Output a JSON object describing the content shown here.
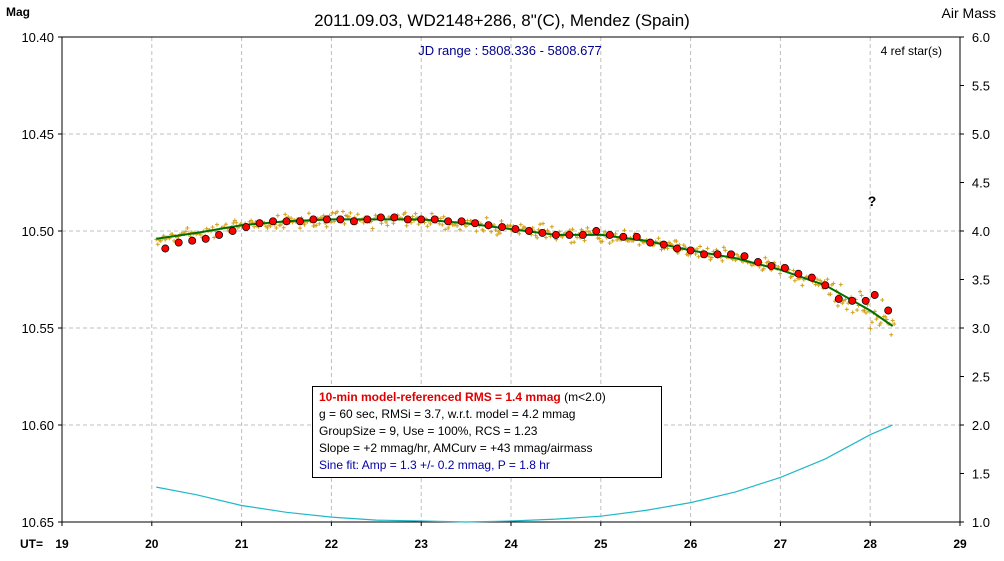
{
  "chart_data": {
    "type": "scatter",
    "title": "2011.09.03, WD2148+286, 8\"(C), Mendez (Spain)",
    "subtitle": "JD range : 5808.336 - 5808.677",
    "ylabel": "Mag",
    "y2label": "Air Mass",
    "xlabel": "UT=",
    "xlim": [
      19,
      29
    ],
    "ylim": [
      10.4,
      10.65
    ],
    "y_inverted": true,
    "y2lim": [
      1.0,
      6.0
    ],
    "x_ticks": [
      "19",
      "20",
      "21",
      "22",
      "23",
      "24",
      "25",
      "26",
      "27",
      "28",
      "29"
    ],
    "y_ticks": [
      "10.40",
      "10.45",
      "10.50",
      "10.55",
      "10.60",
      "10.65"
    ],
    "y2_ticks": [
      "6.0",
      "5.5",
      "5.0",
      "4.5",
      "4.0",
      "3.5",
      "3.0",
      "2.5",
      "2.0",
      "1.5",
      "1.0"
    ],
    "grid": true,
    "ref_stars_label": "4 ref star(s)",
    "annotation": "?",
    "annotation_pos": {
      "x": 28.02,
      "y": 10.487
    },
    "colors": {
      "raw": "#d4a017",
      "binned": "#ff0000",
      "model": "#007000",
      "airmass": "#20b8c8",
      "grid": "#bfbfbf",
      "subtitle": "#00008b"
    },
    "series": [
      {
        "name": "5-min averages",
        "kind": "binned",
        "x": [
          20.15,
          20.3,
          20.45,
          20.6,
          20.75,
          20.9,
          21.05,
          21.2,
          21.35,
          21.5,
          21.65,
          21.8,
          21.95,
          22.1,
          22.25,
          22.4,
          22.55,
          22.7,
          22.85,
          23.0,
          23.15,
          23.3,
          23.45,
          23.6,
          23.75,
          23.9,
          24.05,
          24.2,
          24.35,
          24.5,
          24.65,
          24.8,
          24.95,
          25.1,
          25.25,
          25.4,
          25.55,
          25.7,
          25.85,
          26.0,
          26.15,
          26.3,
          26.45,
          26.6,
          26.75,
          26.9,
          27.05,
          27.2,
          27.35,
          27.5,
          27.65,
          27.8,
          27.95,
          28.05,
          28.2
        ],
        "y": [
          10.509,
          10.506,
          10.505,
          10.504,
          10.502,
          10.5,
          10.498,
          10.496,
          10.495,
          10.495,
          10.495,
          10.494,
          10.494,
          10.494,
          10.495,
          10.494,
          10.493,
          10.493,
          10.494,
          10.494,
          10.494,
          10.495,
          10.495,
          10.496,
          10.497,
          10.498,
          10.499,
          10.5,
          10.501,
          10.502,
          10.502,
          10.502,
          10.5,
          10.502,
          10.503,
          10.503,
          10.506,
          10.507,
          10.509,
          10.51,
          10.512,
          10.512,
          10.512,
          10.513,
          10.516,
          10.518,
          10.519,
          10.522,
          10.524,
          10.528,
          10.535,
          10.536,
          10.536,
          10.533,
          10.541
        ]
      },
      {
        "name": "model",
        "kind": "model",
        "x": [
          20.05,
          20.5,
          21.0,
          21.5,
          22.0,
          22.5,
          23.0,
          23.5,
          24.0,
          24.5,
          25.0,
          25.5,
          26.0,
          26.5,
          27.0,
          27.5,
          28.0,
          28.25
        ],
        "y": [
          10.504,
          10.501,
          10.497,
          10.495,
          10.494,
          10.494,
          10.494,
          10.496,
          10.499,
          10.502,
          10.502,
          10.505,
          10.51,
          10.514,
          10.52,
          10.528,
          10.541,
          10.549
        ]
      },
      {
        "name": "air mass",
        "kind": "airmass",
        "axis": "y2",
        "x": [
          20.05,
          20.5,
          21.0,
          21.5,
          22.0,
          22.5,
          23.0,
          23.5,
          24.0,
          24.5,
          25.0,
          25.5,
          26.0,
          26.5,
          27.0,
          27.5,
          28.0,
          28.25
        ],
        "y": [
          1.36,
          1.28,
          1.17,
          1.1,
          1.05,
          1.02,
          1.01,
          1.0,
          1.01,
          1.03,
          1.06,
          1.12,
          1.2,
          1.31,
          1.46,
          1.65,
          1.9,
          2.0
        ]
      }
    ]
  },
  "stats": {
    "rms_label": "10-min model-referenced RMS = 1.4 mmag",
    "rms_suffix": " (m<2.0)",
    "line2": "g = 60 sec, RMSi = 3.7, w.r.t. model = 4.2 mmag",
    "line3": "GroupSize = 9, Use = 100%, RCS = 1.23",
    "line4": "Slope = +2 mmag/hr, AMCurv = +43 mmag/airmass",
    "line5": "Sine fit: Amp = 1.3 +/- 0.2 mmag, P = 1.8 hr"
  }
}
